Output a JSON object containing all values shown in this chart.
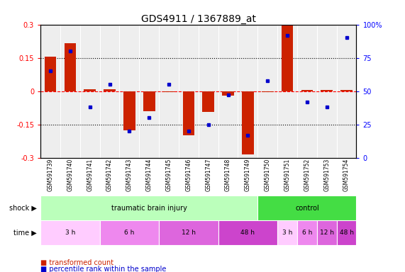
{
  "title": "GDS4911 / 1367889_at",
  "samples": [
    "GSM591739",
    "GSM591740",
    "GSM591741",
    "GSM591742",
    "GSM591743",
    "GSM591744",
    "GSM591745",
    "GSM591746",
    "GSM591747",
    "GSM591748",
    "GSM591749",
    "GSM591750",
    "GSM591751",
    "GSM591752",
    "GSM591753",
    "GSM591754"
  ],
  "red_values": [
    0.155,
    0.215,
    0.01,
    0.01,
    -0.175,
    -0.09,
    -0.005,
    -0.2,
    -0.095,
    -0.02,
    -0.285,
    -0.005,
    0.295,
    0.005,
    0.005,
    0.005
  ],
  "blue_values_pct": [
    65,
    80,
    38,
    55,
    20,
    30,
    55,
    20,
    25,
    47,
    17,
    58,
    92,
    42,
    38,
    90
  ],
  "ylim": [
    -0.3,
    0.3
  ],
  "yticks_left": [
    -0.3,
    -0.15,
    0,
    0.15,
    0.3
  ],
  "yticks_right": [
    0,
    25,
    50,
    75,
    100
  ],
  "bar_color": "#cc2200",
  "dot_color": "#0000cc",
  "bg_color": "#ffffff",
  "title_fontsize": 10,
  "tick_fontsize": 7,
  "sample_fontsize": 5.5,
  "legend_red": "transformed count",
  "legend_blue": "percentile rank within the sample",
  "shock_groups": [
    {
      "label": "traumatic brain injury",
      "start": 0,
      "end": 11,
      "color": "#bbffbb"
    },
    {
      "label": "control",
      "start": 11,
      "end": 16,
      "color": "#44dd44"
    }
  ],
  "time_groups": [
    {
      "label": "3 h",
      "start": 0,
      "end": 3,
      "color": "#ffccff"
    },
    {
      "label": "6 h",
      "start": 3,
      "end": 6,
      "color": "#ee88ee"
    },
    {
      "label": "12 h",
      "start": 6,
      "end": 9,
      "color": "#dd66dd"
    },
    {
      "label": "48 h",
      "start": 9,
      "end": 12,
      "color": "#cc44cc"
    },
    {
      "label": "3 h",
      "start": 12,
      "end": 13,
      "color": "#ffccff"
    },
    {
      "label": "6 h",
      "start": 13,
      "end": 14,
      "color": "#ee88ee"
    },
    {
      "label": "12 h",
      "start": 14,
      "end": 15,
      "color": "#dd66dd"
    },
    {
      "label": "48 h",
      "start": 15,
      "end": 16,
      "color": "#cc44cc"
    }
  ]
}
